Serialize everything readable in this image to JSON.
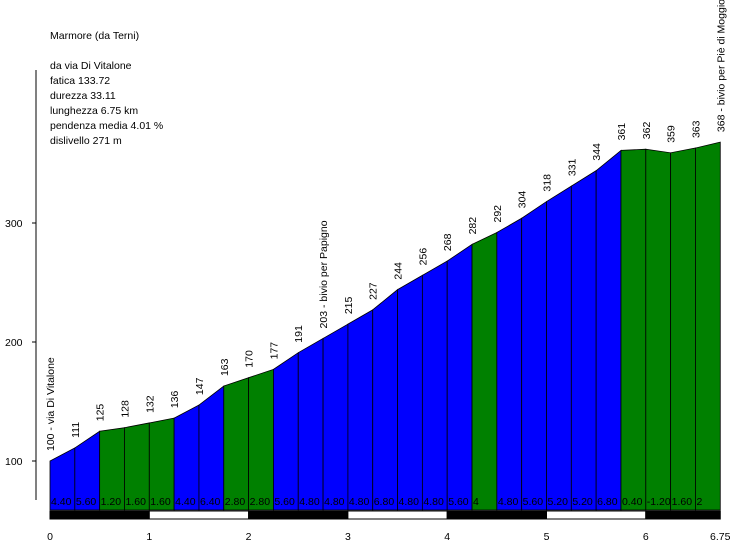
{
  "title": "Marmore (da Terni)",
  "info": {
    "route": "da via Di Vitalone",
    "fatica": "fatica 133.72",
    "durezza": "durezza 33.11",
    "lunghezza": "lunghezza 6.75 km",
    "pendenza": "pendenza media 4.01 %",
    "dislivello": "dislivello 271 m"
  },
  "colors": {
    "blue": "#0000ff",
    "green": "#008000",
    "scale_dark": "#000000",
    "scale_light": "#ffffff"
  },
  "chart_data": {
    "type": "area",
    "xlabel": "",
    "ylabel": "",
    "xlim": [
      0,
      6.75
    ],
    "ylim": [
      50,
      400
    ],
    "x_ticks": [
      "0",
      "1",
      "2",
      "3",
      "4",
      "5",
      "6",
      "6.75"
    ],
    "y_ticks": [
      "100",
      "200",
      "300"
    ],
    "x": [
      0,
      0.25,
      0.5,
      0.75,
      1,
      1.25,
      1.5,
      1.75,
      2,
      2.25,
      2.5,
      2.75,
      3,
      3.25,
      3.5,
      3.75,
      4,
      4.25,
      4.5,
      4.75,
      5,
      5.25,
      5.5,
      5.75,
      6,
      6.25,
      6.5,
      6.75
    ],
    "y": [
      100,
      111,
      125,
      128,
      132,
      136,
      147,
      163,
      170,
      177,
      191,
      203,
      215,
      227,
      244,
      256,
      268,
      282,
      292,
      304,
      318,
      331,
      344,
      361,
      362,
      359,
      363,
      368
    ],
    "altitude_labels": [
      "100 - via Di Vitalone",
      "111",
      "125",
      "128",
      "132",
      "136",
      "147",
      "163",
      "170",
      "177",
      "191",
      "203 - bivio per Papigno",
      "215",
      "227",
      "244",
      "256",
      "268",
      "282",
      "292",
      "304",
      "318",
      "331",
      "344",
      "361",
      "362",
      "359",
      "363",
      "368 - bivio per Piè di Moggio"
    ],
    "gradient_labels": [
      "4.40",
      "5.60",
      "1.20",
      "1.60",
      "1.60",
      "4.40",
      "6.40",
      "2.80",
      "2.80",
      "5.60",
      "4.80",
      "4.80",
      "4.80",
      "6.80",
      "4.80",
      "4.80",
      "5.60",
      "4",
      "4.80",
      "5.60",
      "5.20",
      "5.20",
      "6.80",
      "0.40",
      "-1.20",
      "1.60",
      "2"
    ],
    "segment_colors": [
      "blue",
      "blue",
      "green",
      "green",
      "green",
      "blue",
      "blue",
      "green",
      "green",
      "blue",
      "blue",
      "blue",
      "blue",
      "blue",
      "blue",
      "blue",
      "blue",
      "green",
      "blue",
      "blue",
      "blue",
      "blue",
      "blue",
      "green",
      "green",
      "green",
      "green"
    ]
  }
}
